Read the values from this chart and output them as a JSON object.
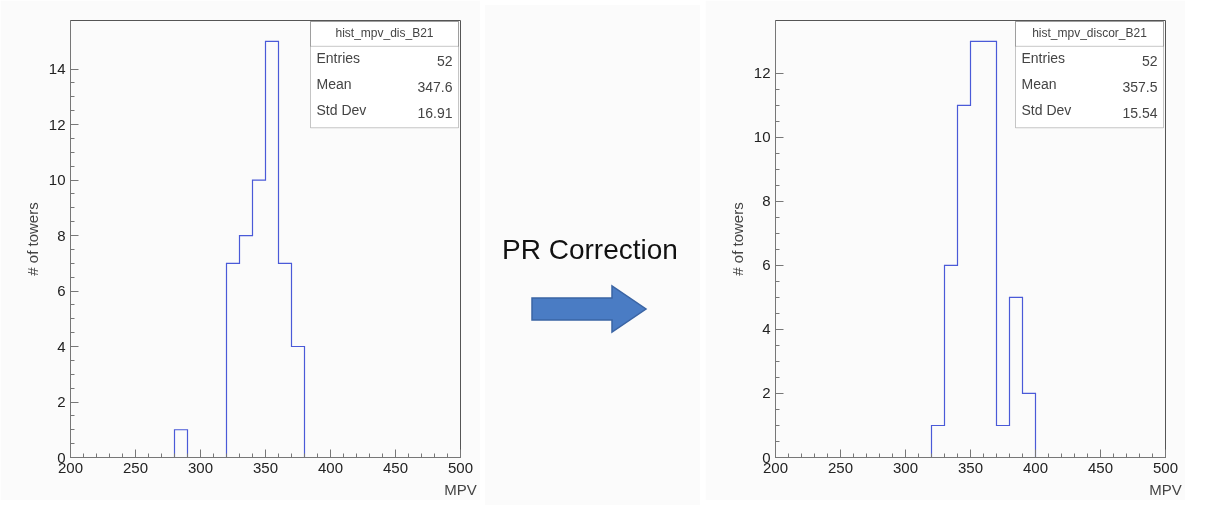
{
  "chart_data": [
    {
      "type": "histogram",
      "ylabel": "# of towers",
      "xlabel": "MPV",
      "bins": [
        280,
        290,
        300,
        310,
        320,
        330,
        340,
        350,
        360,
        370,
        380
      ],
      "values": [
        1,
        0,
        0,
        0,
        7,
        8,
        10,
        15,
        7,
        4
      ],
      "color": "#4a5ad8",
      "xlim": [
        200,
        500
      ],
      "ylim": [
        0,
        15.75
      ],
      "xticks": [
        200,
        250,
        300,
        350,
        400,
        450,
        500
      ],
      "yticks": [
        0,
        2,
        4,
        6,
        8,
        10,
        12,
        14
      ],
      "grid": false,
      "annotations": [
        "hist_mpv_dis_B21",
        "Entries",
        "52",
        "Mean",
        "347.6",
        "Std Dev",
        "16.91",
        "PR Correction"
      ]
    },
    {
      "type": "histogram",
      "ylabel": "# of towers",
      "xlabel": "MPV",
      "bins": [
        320,
        330,
        340,
        350,
        360,
        370,
        380,
        390,
        400
      ],
      "values": [
        1,
        6,
        11,
        13,
        13,
        1,
        5,
        2
      ],
      "color": "#4a5ad8",
      "xlim": [
        200,
        500
      ],
      "ylim": [
        0,
        13.65
      ],
      "xticks": [
        200,
        250,
        300,
        350,
        400,
        450,
        500
      ],
      "yticks": [
        0,
        2,
        4,
        6,
        8,
        10,
        12
      ],
      "grid": false,
      "annotations": [
        "hist_mpv_discor_B21",
        "Entries",
        "52",
        "Mean",
        "357.5",
        "Std Dev",
        "15.54"
      ]
    }
  ]
}
